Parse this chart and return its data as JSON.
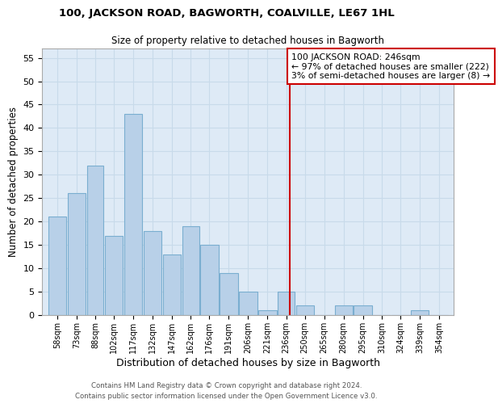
{
  "title1": "100, JACKSON ROAD, BAGWORTH, COALVILLE, LE67 1HL",
  "title2": "Size of property relative to detached houses in Bagworth",
  "xlabel": "Distribution of detached houses by size in Bagworth",
  "ylabel": "Number of detached properties",
  "bin_labels": [
    "58sqm",
    "73sqm",
    "88sqm",
    "102sqm",
    "117sqm",
    "132sqm",
    "147sqm",
    "162sqm",
    "176sqm",
    "191sqm",
    "206sqm",
    "221sqm",
    "236sqm",
    "250sqm",
    "265sqm",
    "280sqm",
    "295sqm",
    "310sqm",
    "324sqm",
    "339sqm",
    "354sqm"
  ],
  "bin_edges": [
    58,
    73,
    88,
    102,
    117,
    132,
    147,
    162,
    176,
    191,
    206,
    221,
    236,
    250,
    265,
    280,
    295,
    310,
    324,
    339,
    354,
    369
  ],
  "bar_heights": [
    21,
    26,
    32,
    17,
    43,
    18,
    13,
    19,
    15,
    9,
    5,
    1,
    5,
    2,
    0,
    2,
    2,
    0,
    0,
    1,
    0
  ],
  "bar_color": "#b8d0e8",
  "bar_edge_color": "#7aaed0",
  "grid_color": "#c8daea",
  "background_color": "#deeaf6",
  "vline_x": 246,
  "vline_color": "#cc0000",
  "annotation_text": "100 JACKSON ROAD: 246sqm\n← 97% of detached houses are smaller (222)\n3% of semi-detached houses are larger (8) →",
  "annotation_box_color": "#cc0000",
  "ylim": [
    0,
    57
  ],
  "yticks": [
    0,
    5,
    10,
    15,
    20,
    25,
    30,
    35,
    40,
    45,
    50,
    55
  ],
  "footer1": "Contains HM Land Registry data © Crown copyright and database right 2024.",
  "footer2": "Contains public sector information licensed under the Open Government Licence v3.0."
}
